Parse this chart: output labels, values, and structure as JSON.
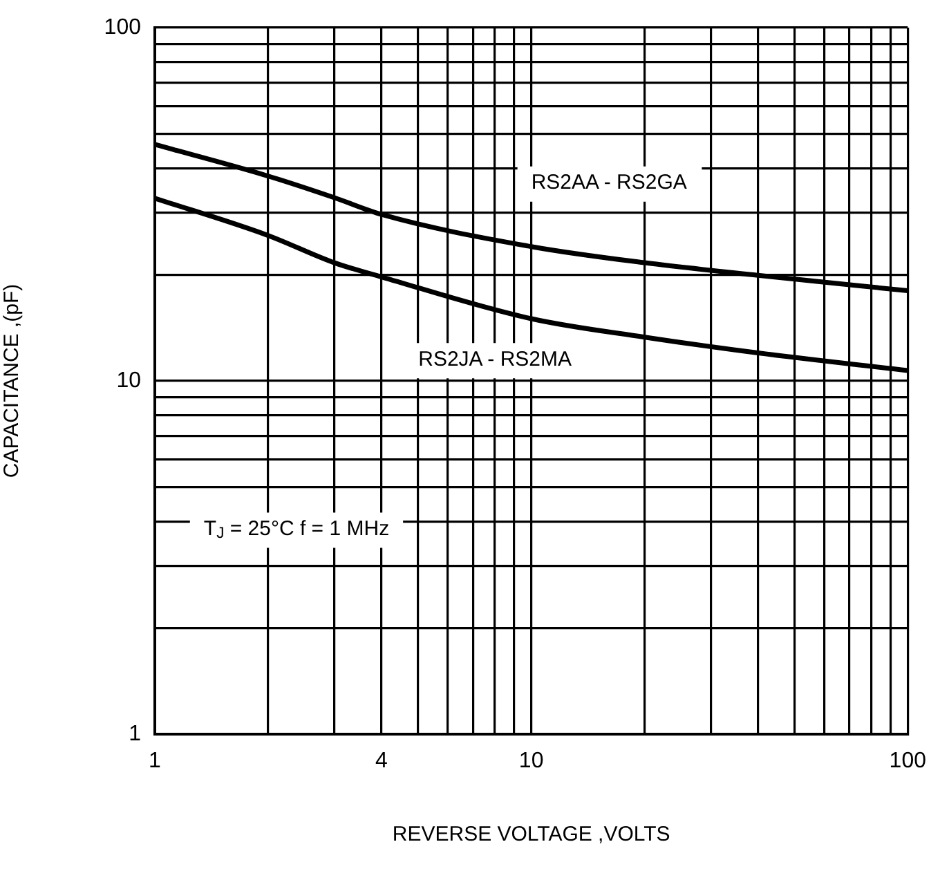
{
  "chart_data": {
    "type": "line",
    "xlabel": "REVERSE VOLTAGE ,VOLTS",
    "ylabel": "CAPACITANCE ,(pF)",
    "x": [
      1,
      2,
      3,
      4,
      10,
      20,
      40,
      100
    ],
    "series": [
      {
        "name": "RS2AA - RS2GA",
        "color": "#000000",
        "values": [
          46.7,
          38,
          33,
          29.6,
          24,
          21.6,
          19.9,
          18
        ]
      },
      {
        "name": "RS2JA - RS2MA",
        "color": "#000000",
        "values": [
          32.9,
          25.8,
          21.6,
          19.7,
          15,
          13.3,
          12,
          10.7
        ]
      }
    ],
    "xlim": [
      1,
      100
    ],
    "ylim": [
      1,
      100
    ],
    "xticks": [
      1,
      {
        "value": 2,
        "label": null
      },
      {
        "value": 3,
        "label": null
      },
      4,
      {
        "value": 5,
        "label": null
      },
      {
        "value": 6,
        "label": null
      },
      {
        "value": 7,
        "label": null
      },
      {
        "value": 8,
        "label": null
      },
      {
        "value": 9,
        "label": null
      },
      10,
      {
        "value": 20,
        "label": null
      },
      {
        "value": 30,
        "label": null
      },
      {
        "value": 40,
        "label": null
      },
      {
        "value": 50,
        "label": null
      },
      {
        "value": 60,
        "label": null
      },
      {
        "value": 70,
        "label": null
      },
      {
        "value": 80,
        "label": null
      },
      {
        "value": 90,
        "label": null
      },
      100
    ],
    "yticks": [
      1,
      {
        "value": 2,
        "label": null
      },
      {
        "value": 3,
        "label": null
      },
      {
        "value": 4,
        "label": null
      },
      {
        "value": 5,
        "label": null
      },
      {
        "value": 6,
        "label": null
      },
      {
        "value": 7,
        "label": null
      },
      {
        "value": 8,
        "label": null
      },
      {
        "value": 9,
        "label": null
      },
      10,
      {
        "value": 20,
        "label": null
      },
      {
        "value": 30,
        "label": null
      },
      {
        "value": 40,
        "label": null
      },
      {
        "value": 50,
        "label": null
      },
      {
        "value": 60,
        "label": null
      },
      {
        "value": 70,
        "label": null
      },
      {
        "value": 80,
        "label": null
      },
      {
        "value": 90,
        "label": null
      },
      100
    ],
    "annotations": [
      "T$_{J}$ = 25°C f = 1 MHz"
    ],
    "log": "xy",
    "grid": true,
    "legend": false,
    "marker": "none",
    "line_style": "solid"
  }
}
